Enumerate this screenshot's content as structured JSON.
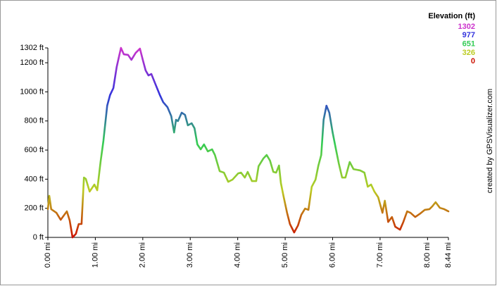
{
  "chart_data": {
    "type": "line",
    "legend": {
      "title": "Elevation (ft)",
      "stops": [
        {
          "value": 1302,
          "color": "#cc33cc"
        },
        {
          "value": 977,
          "color": "#3333dd"
        },
        {
          "value": 651,
          "color": "#33cc55"
        },
        {
          "value": 326,
          "color": "#bbcc22"
        },
        {
          "value": 0,
          "color": "#cc1100"
        }
      ]
    },
    "annotation": "created by GPSVisualizer.com",
    "x": [
      0,
      0.03,
      0.07,
      0.18,
      0.27,
      0.4,
      0.46,
      0.52,
      0.59,
      0.65,
      0.71,
      0.76,
      0.8,
      0.88,
      0.98,
      1.04,
      1.11,
      1.17,
      1.25,
      1.31,
      1.38,
      1.45,
      1.54,
      1.6,
      1.69,
      1.76,
      1.85,
      1.94,
      2.0,
      2.06,
      2.12,
      2.18,
      2.27,
      2.36,
      2.43,
      2.52,
      2.6,
      2.66,
      2.7,
      2.74,
      2.82,
      2.89,
      2.95,
      3.03,
      3.09,
      3.15,
      3.22,
      3.29,
      3.37,
      3.46,
      3.52,
      3.62,
      3.71,
      3.8,
      3.89,
      4.01,
      4.07,
      4.15,
      4.21,
      4.3,
      4.39,
      4.44,
      4.54,
      4.61,
      4.68,
      4.75,
      4.81,
      4.87,
      4.91,
      4.97,
      5.04,
      5.1,
      5.19,
      5.27,
      5.34,
      5.42,
      5.49,
      5.56,
      5.64,
      5.7,
      5.76,
      5.81,
      5.87,
      5.93,
      6.0,
      6.07,
      6.13,
      6.2,
      6.27,
      6.36,
      6.44,
      6.58,
      6.67,
      6.74,
      6.81,
      6.88,
      6.96,
      7.05,
      7.1,
      7.17,
      7.25,
      7.32,
      7.42,
      7.49,
      7.57,
      7.64,
      7.74,
      7.85,
      7.94,
      8.04,
      8.1,
      8.17,
      8.26,
      8.35,
      8.44
    ],
    "values": [
      194,
      286,
      194,
      169,
      121,
      179,
      116,
      0,
      24,
      92,
      92,
      411,
      402,
      315,
      363,
      324,
      518,
      663,
      905,
      978,
      1026,
      1171,
      1302,
      1258,
      1254,
      1220,
      1268,
      1297,
      1220,
      1147,
      1113,
      1123,
      1050,
      978,
      929,
      895,
      833,
      721,
      808,
      799,
      857,
      842,
      770,
      784,
      750,
      639,
      605,
      639,
      591,
      605,
      566,
      455,
      445,
      382,
      397,
      440,
      445,
      411,
      450,
      387,
      387,
      489,
      542,
      566,
      528,
      450,
      445,
      494,
      373,
      276,
      169,
      92,
      34,
      82,
      155,
      198,
      189,
      348,
      397,
      494,
      566,
      808,
      905,
      857,
      721,
      605,
      508,
      411,
      411,
      518,
      469,
      460,
      445,
      348,
      363,
      315,
      276,
      169,
      252,
      106,
      140,
      73,
      53,
      106,
      179,
      169,
      140,
      165,
      189,
      194,
      213,
      242,
      203,
      194,
      179
    ],
    "xlim": [
      0,
      8.44
    ],
    "ylim": [
      0,
      1302
    ],
    "xticks": [
      {
        "value": 0,
        "label": "0.00 mi"
      },
      {
        "value": 1,
        "label": "1.00 mi"
      },
      {
        "value": 2,
        "label": "2.00 mi"
      },
      {
        "value": 3,
        "label": "3.00 mi"
      },
      {
        "value": 4,
        "label": "4.00 mi"
      },
      {
        "value": 5,
        "label": "5.00 mi"
      },
      {
        "value": 6,
        "label": "6.00 mi"
      },
      {
        "value": 7,
        "label": "7.00 mi"
      },
      {
        "value": 8,
        "label": "8.00 mi"
      },
      {
        "value": 8.44,
        "label": "8.44 mi"
      }
    ],
    "yticks": [
      {
        "value": 0,
        "label": "0 ft"
      },
      {
        "value": 200,
        "label": "200 ft"
      },
      {
        "value": 400,
        "label": "400 ft"
      },
      {
        "value": 600,
        "label": "600 ft"
      },
      {
        "value": 800,
        "label": "800 ft"
      },
      {
        "value": 1000,
        "label": "1000 ft"
      },
      {
        "value": 1200,
        "label": "1200 ft"
      },
      {
        "value": 1302,
        "label": "1302 ft"
      }
    ],
    "grid": false
  }
}
